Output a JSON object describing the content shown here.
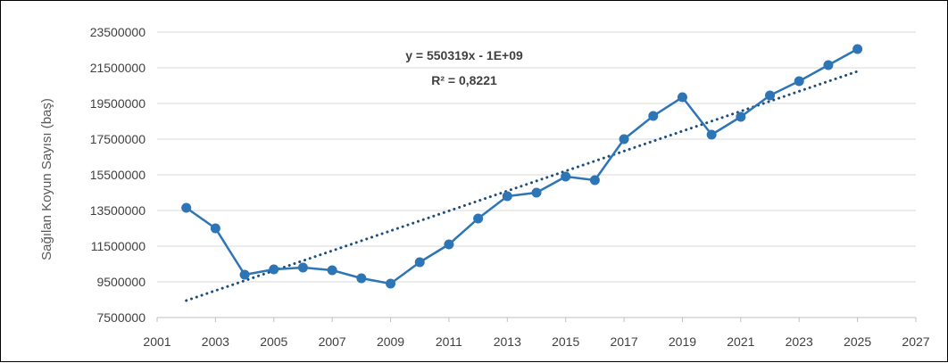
{
  "chart_data": {
    "type": "line",
    "title": "",
    "xlabel": "",
    "ylabel": "Sağılan Koyun Sayısı (baş)",
    "xlim": [
      2001,
      2027
    ],
    "ylim": [
      7500000,
      23500000
    ],
    "x_ticks": [
      "2001",
      "2003",
      "2005",
      "2007",
      "2009",
      "2011",
      "2013",
      "2015",
      "2017",
      "2019",
      "2021",
      "2023",
      "2025",
      "2027"
    ],
    "y_ticks": [
      "7500000",
      "9500000",
      "11500000",
      "13500000",
      "15500000",
      "17500000",
      "19500000",
      "21500000",
      "23500000"
    ],
    "grid": "horizontal",
    "series": [
      {
        "x": [
          2002,
          2003,
          2004,
          2005,
          2006,
          2007,
          2008,
          2009,
          2010,
          2011,
          2012,
          2013,
          2014,
          2015,
          2016,
          2017,
          2018,
          2019,
          2020,
          2021,
          2022,
          2023,
          2024,
          2025
        ],
        "values": [
          13650000,
          12500000,
          9900000,
          10200000,
          10300000,
          10150000,
          9700000,
          9400000,
          10600000,
          11600000,
          13050000,
          14300000,
          14500000,
          15400000,
          15200000,
          17500000,
          18800000,
          19850000,
          17750000,
          18750000,
          19950000,
          20750000,
          21650000,
          22550000
        ],
        "color": "#2e75b6"
      }
    ],
    "trendline": {
      "type": "linear",
      "x": [
        2002,
        2025
      ],
      "values": [
        8450000,
        21300000
      ],
      "color": "#1f4e79",
      "equation": "y = 550319x  - 1E+09",
      "r_squared": "R² = 0,8221"
    }
  }
}
